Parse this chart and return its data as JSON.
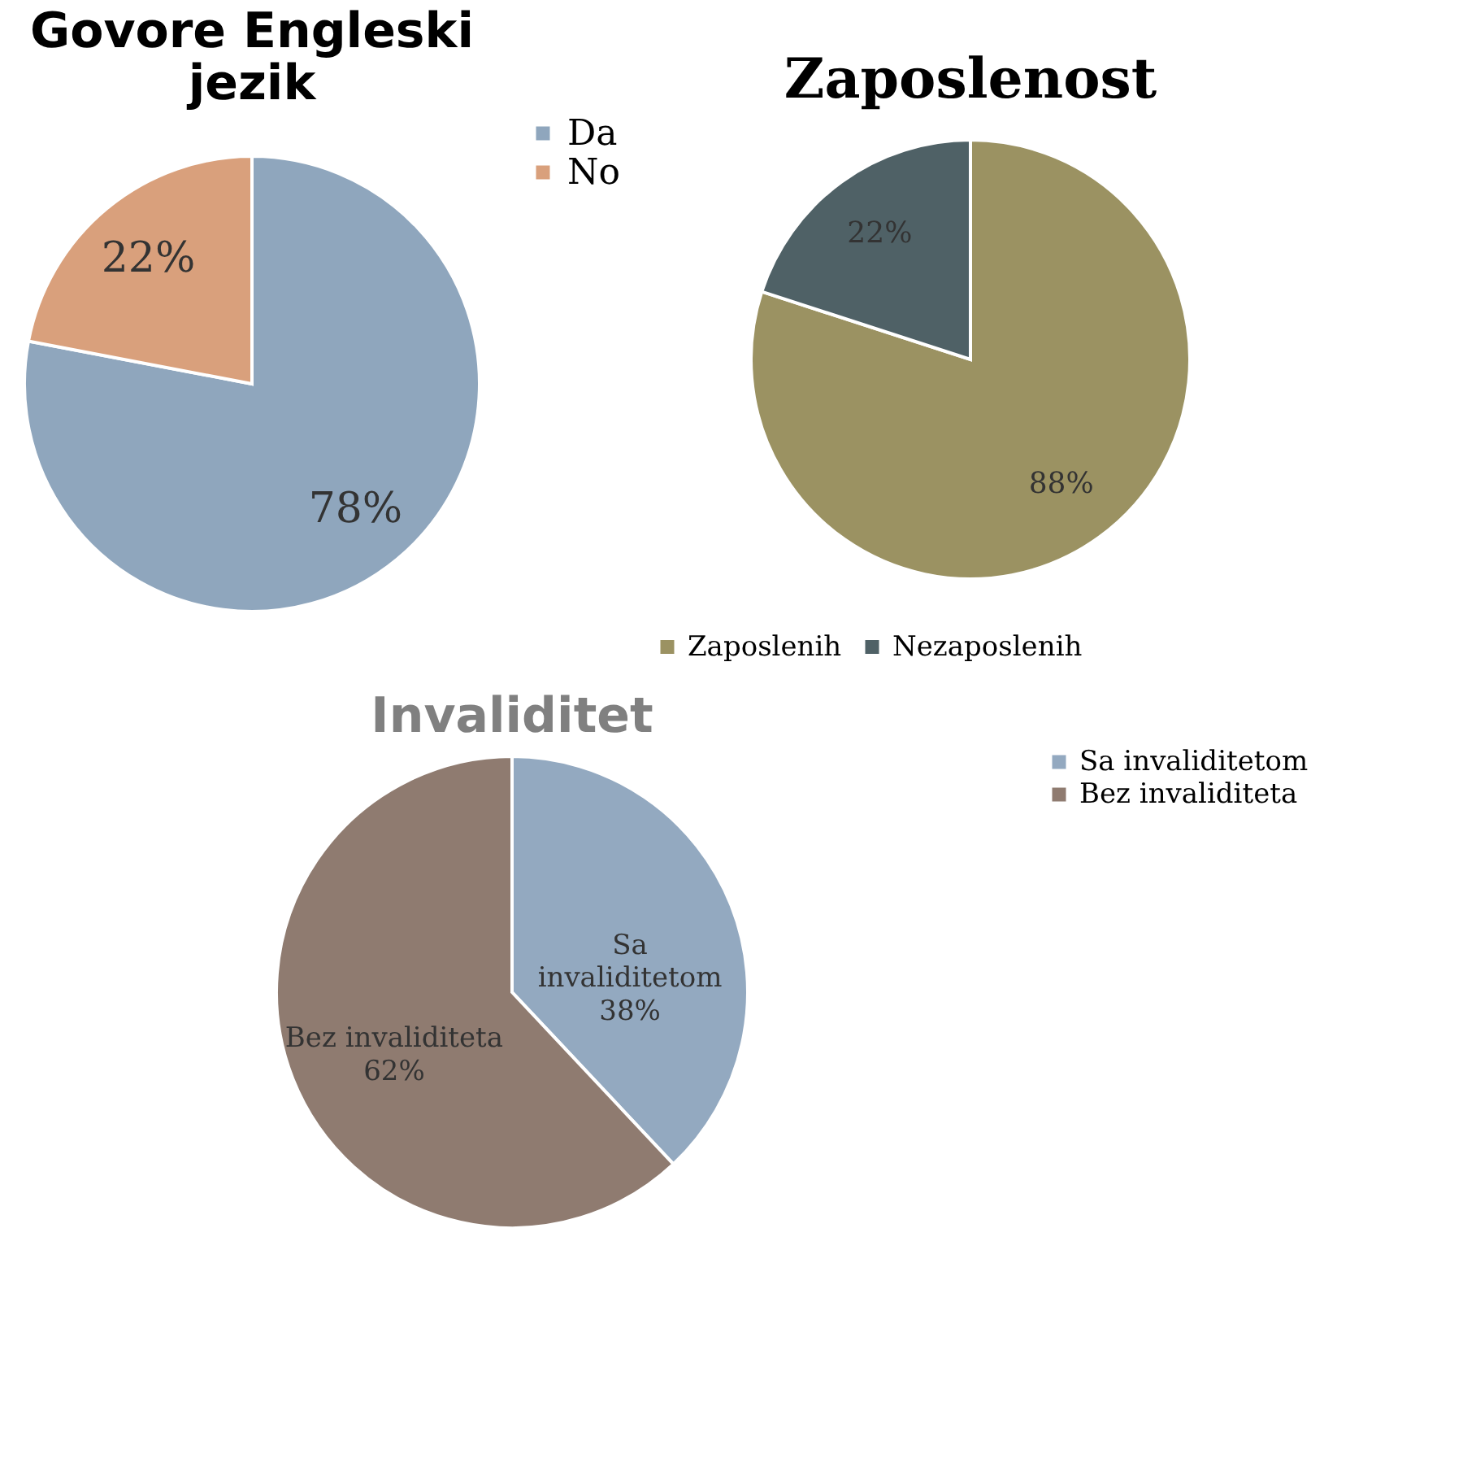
{
  "chart_data": [
    {
      "type": "pie",
      "title": "Govore Engleski jezik",
      "categories": [
        "Da",
        "No"
      ],
      "values": [
        78,
        22
      ],
      "colors": [
        "#8fa6bd",
        "#d9a07c"
      ],
      "value_labels": [
        "78%",
        "22%"
      ],
      "legend": "right"
    },
    {
      "type": "pie",
      "title": "Zaposlenost",
      "categories": [
        "Zaposlenih",
        "Nezaposlenih"
      ],
      "values": [
        88,
        22
      ],
      "colors": [
        "#9b9262",
        "#4f6166"
      ],
      "value_labels": [
        "88%",
        "22%"
      ],
      "legend": "bottom"
    },
    {
      "type": "pie",
      "title": "Invaliditet",
      "categories": [
        "Sa invaliditetom",
        "Bez invaliditeta"
      ],
      "values": [
        38,
        62
      ],
      "colors": [
        "#93a9c0",
        "#8f7b70"
      ],
      "value_labels": [
        "Sa\ninvaliditetom\n38%",
        "Bez invaliditeta\n62%"
      ],
      "legend": "right"
    }
  ]
}
